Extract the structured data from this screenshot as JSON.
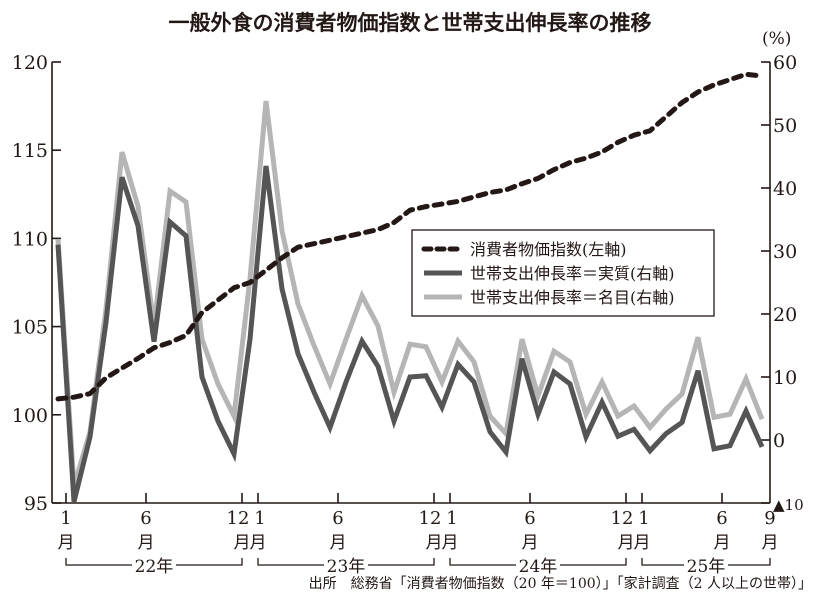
{
  "chart_data": {
    "type": "line",
    "title": "一般外食の消費者物価指数と世帯支出伸長率の推移",
    "right_unit": "(%)",
    "left_axis": {
      "ylim": [
        95,
        120
      ],
      "ticks": [
        95,
        100,
        105,
        110,
        115,
        120
      ]
    },
    "right_axis": {
      "ylim": [
        -10,
        60
      ],
      "ticks": [
        -10,
        0,
        10,
        20,
        30,
        40,
        50,
        60
      ],
      "tick_labels": [
        "▲10",
        "0",
        "10",
        "20",
        "30",
        "40",
        "50",
        "60"
      ]
    },
    "x_range": [
      "2022-01",
      "2025-09"
    ],
    "x_tick_labels": [
      {
        "month_index": 0,
        "num": "1",
        "unit": "月"
      },
      {
        "month_index": 5,
        "num": "6",
        "unit": "月"
      },
      {
        "month_index": 11,
        "num": "12",
        "unit": "月"
      },
      {
        "month_index": 12,
        "num": "1",
        "unit": "月"
      },
      {
        "month_index": 17,
        "num": "6",
        "unit": "月"
      },
      {
        "month_index": 23,
        "num": "12",
        "unit": "月"
      },
      {
        "month_index": 24,
        "num": "1",
        "unit": "月"
      },
      {
        "month_index": 29,
        "num": "6",
        "unit": "月"
      },
      {
        "month_index": 35,
        "num": "12",
        "unit": "月"
      },
      {
        "month_index": 36,
        "num": "1",
        "unit": "月"
      },
      {
        "month_index": 41,
        "num": "6",
        "unit": "月"
      },
      {
        "month_index": 44,
        "num": "9",
        "unit": "月"
      }
    ],
    "years": [
      {
        "label": "22年",
        "from": 0,
        "to": 11
      },
      {
        "label": "23年",
        "from": 12,
        "to": 23
      },
      {
        "label": "24年",
        "from": 24,
        "to": 35
      },
      {
        "label": "25年",
        "from": 36,
        "to": 44
      }
    ],
    "legend_placement": "center-right",
    "grid": false,
    "series": [
      {
        "name": "消費者物価指数(左軸)",
        "axis": "left",
        "style": "dashed",
        "color": "#231815",
        "values": [
          100.9,
          101.0,
          101.2,
          102.1,
          102.65,
          103.2,
          103.8,
          104.1,
          104.5,
          105.8,
          106.5,
          107.2,
          107.5,
          108.2,
          108.9,
          109.5,
          109.7,
          109.9,
          110.1,
          110.3,
          110.5,
          110.9,
          111.6,
          111.8,
          111.95,
          112.1,
          112.35,
          112.6,
          112.75,
          113.1,
          113.4,
          113.9,
          114.3,
          114.55,
          114.9,
          115.45,
          115.85,
          116.1,
          116.9,
          117.7,
          118.3,
          118.7,
          119.0,
          119.3,
          119.2
        ]
      },
      {
        "name": "世帯支出伸長率＝実質(右軸)",
        "axis": "right",
        "style": "solid",
        "color": "#555555",
        "values": [
          31,
          -9.8,
          0.5,
          18.7,
          41.7,
          34,
          15.6,
          34.6,
          32.4,
          10,
          3,
          -2.2,
          16,
          43.5,
          24,
          13.7,
          7.6,
          2,
          9.2,
          15.7,
          11.7,
          3,
          10,
          10.2,
          5.2,
          12,
          9.2,
          1.3,
          -1.9,
          12.9,
          4.1,
          10.8,
          8.9,
          0.5,
          6,
          0.6,
          1.7,
          -1.7,
          1,
          2.8,
          11,
          -1.4,
          -0.9,
          4.6,
          -1.1
        ]
      },
      {
        "name": "世帯支出伸長率＝名目(右軸)",
        "axis": "right",
        "style": "solid",
        "color": "#b5b5b5",
        "values": [
          31.9,
          -7.3,
          1.3,
          20.8,
          45.7,
          37.1,
          18.1,
          39.5,
          37.8,
          16,
          8.9,
          3.8,
          25.6,
          53.8,
          33.2,
          21.6,
          15,
          8.9,
          16,
          22.9,
          18.1,
          7.6,
          15.2,
          14.8,
          9.2,
          15.7,
          12.4,
          3.8,
          1,
          16,
          7,
          14.1,
          12.4,
          4.1,
          9.2,
          3.8,
          5.4,
          2,
          4.9,
          7.3,
          16.3,
          3.6,
          4.1,
          9.7,
          3.3
        ]
      }
    ],
    "source": "出所　総務省「消費者物価指数（20 年＝100）」「家計調査（2 人以上の世帯）」"
  }
}
